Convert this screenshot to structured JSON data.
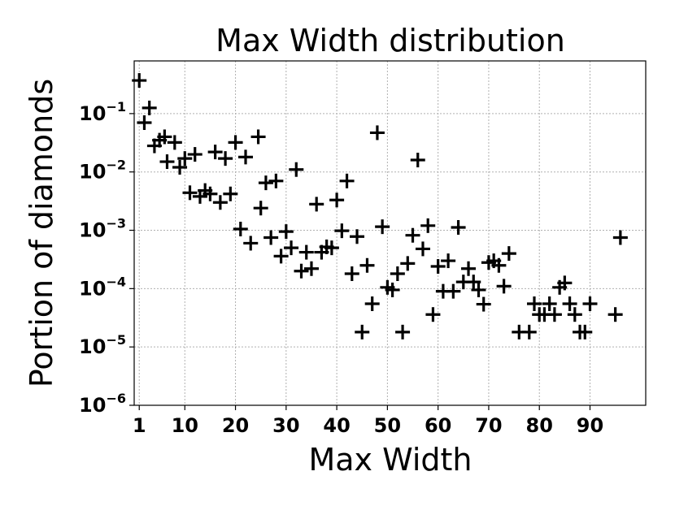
{
  "chart_data": {
    "type": "scatter",
    "title": "Max Width distribution",
    "xlabel": "Max Width",
    "ylabel": "Portion of diamonds",
    "x_scale": "linear",
    "y_scale": "log",
    "xlim": [
      0,
      101
    ],
    "ylim": [
      1e-06,
      0.8
    ],
    "grid": true,
    "marker": "plus",
    "marker_color": "#000000",
    "x_ticks": [
      {
        "value": 1,
        "label": "1"
      },
      {
        "value": 10,
        "label": "10"
      },
      {
        "value": 20,
        "label": "20"
      },
      {
        "value": 30,
        "label": "30"
      },
      {
        "value": 40,
        "label": "40"
      },
      {
        "value": 50,
        "label": "50"
      },
      {
        "value": 60,
        "label": "60"
      },
      {
        "value": 70,
        "label": "70"
      },
      {
        "value": 80,
        "label": "80"
      },
      {
        "value": 90,
        "label": "90"
      }
    ],
    "y_ticks": [
      {
        "value": 1e-06,
        "base": "10",
        "exp": "−6"
      },
      {
        "value": 1e-05,
        "base": "10",
        "exp": "−5"
      },
      {
        "value": 0.0001,
        "base": "10",
        "exp": "−4"
      },
      {
        "value": 0.001,
        "base": "10",
        "exp": "−3"
      },
      {
        "value": 0.01,
        "base": "10",
        "exp": "−2"
      },
      {
        "value": 0.1,
        "base": "10",
        "exp": "−1"
      }
    ],
    "points": [
      [
        1,
        0.37
      ],
      [
        2,
        0.07
      ],
      [
        3,
        0.125
      ],
      [
        4,
        0.028
      ],
      [
        5,
        0.035
      ],
      [
        6,
        0.04
      ],
      [
        6.5,
        0.015
      ],
      [
        8,
        0.032
      ],
      [
        9,
        0.012
      ],
      [
        10,
        0.017
      ],
      [
        11,
        0.0044
      ],
      [
        12,
        0.02
      ],
      [
        13,
        0.0038
      ],
      [
        14,
        0.0048
      ],
      [
        15,
        0.0042
      ],
      [
        16,
        0.022
      ],
      [
        17,
        0.003
      ],
      [
        18,
        0.017
      ],
      [
        19,
        0.0042
      ],
      [
        20,
        0.032
      ],
      [
        21,
        0.00105
      ],
      [
        22,
        0.018
      ],
      [
        23,
        0.0006
      ],
      [
        24.5,
        0.04
      ],
      [
        25,
        0.0024
      ],
      [
        26,
        0.0065
      ],
      [
        27,
        0.00075
      ],
      [
        28,
        0.007
      ],
      [
        29,
        0.00036
      ],
      [
        30,
        0.00095
      ],
      [
        31,
        0.0005
      ],
      [
        32,
        0.011
      ],
      [
        33,
        0.0002
      ],
      [
        34,
        0.00042
      ],
      [
        35,
        0.00022
      ],
      [
        36,
        0.0028
      ],
      [
        37,
        0.00042
      ],
      [
        38,
        0.00052
      ],
      [
        39,
        0.0005
      ],
      [
        40,
        0.0033
      ],
      [
        41,
        0.00098
      ],
      [
        42,
        0.007
      ],
      [
        43,
        0.00018
      ],
      [
        44,
        0.00078
      ],
      [
        45,
        1.8e-05
      ],
      [
        46,
        0.00025
      ],
      [
        47,
        5.5e-05
      ],
      [
        48,
        0.047
      ],
      [
        49,
        0.00115
      ],
      [
        50,
        0.000105
      ],
      [
        51,
        9.5e-05
      ],
      [
        52,
        0.00018
      ],
      [
        53,
        1.8e-05
      ],
      [
        54,
        0.00027
      ],
      [
        55,
        0.00082
      ],
      [
        56,
        0.016
      ],
      [
        57,
        0.00048
      ],
      [
        58,
        0.0012
      ],
      [
        59,
        3.6e-05
      ],
      [
        60,
        0.00024
      ],
      [
        61,
        9e-05
      ],
      [
        62,
        0.0003
      ],
      [
        63,
        9e-05
      ],
      [
        64,
        0.00112
      ],
      [
        65,
        0.00013
      ],
      [
        66,
        0.00022
      ],
      [
        67,
        0.00013
      ],
      [
        68,
        9.5e-05
      ],
      [
        69,
        5.4e-05
      ],
      [
        70,
        0.00028
      ],
      [
        71,
        0.0003
      ],
      [
        72,
        0.00025
      ],
      [
        73,
        0.00011
      ],
      [
        74,
        0.0004
      ],
      [
        76,
        1.8e-05
      ],
      [
        78,
        1.8e-05
      ],
      [
        79,
        5.5e-05
      ],
      [
        80,
        3.6e-05
      ],
      [
        81,
        3.6e-05
      ],
      [
        82,
        5.5e-05
      ],
      [
        83,
        3.6e-05
      ],
      [
        84,
        0.000105
      ],
      [
        85,
        0.000125
      ],
      [
        86,
        5.5e-05
      ],
      [
        87,
        3.6e-05
      ],
      [
        88,
        1.8e-05
      ],
      [
        89,
        1.8e-05
      ],
      [
        90,
        5.5e-05
      ],
      [
        95,
        3.6e-05
      ],
      [
        96,
        0.00075
      ]
    ]
  }
}
